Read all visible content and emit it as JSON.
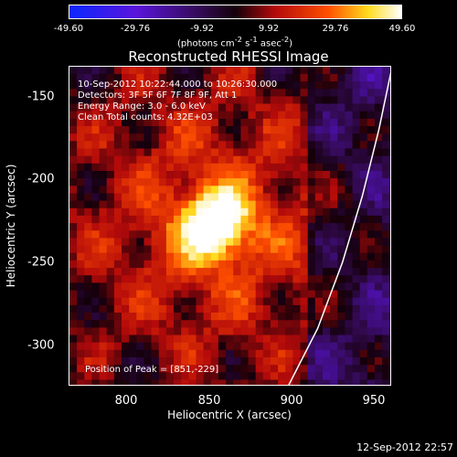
{
  "chart_data": {
    "type": "heatmap",
    "title": "Reconstructed RHESSI Image",
    "xlabel": "Heliocentric X (arcsec)",
    "ylabel": "Heliocentric Y (arcsec)",
    "xlim": [
      765,
      960
    ],
    "ylim": [
      -325,
      -132
    ],
    "xticks": [
      800,
      850,
      900,
      950
    ],
    "yticks": [
      -150,
      -200,
      -250,
      -300
    ],
    "colorbar": {
      "ticks": [
        "-49.60",
        "-29.76",
        "-9.92",
        "9.92",
        "29.76",
        "49.60"
      ],
      "min": -49.6,
      "max": 49.6,
      "units_main": "(photons cm",
      "units_exp1": "-2",
      "units_mid1": " s",
      "units_exp2": "-1",
      "units_mid2": " asec",
      "units_exp3": "-2",
      "units_end": ")"
    },
    "annotations": {
      "time_range": "10-Sep-2012 10:22:44.000 to 10:26:30.000",
      "detectors": "Detectors: 3F 5F 6F 7F 8F 9F, Att 1",
      "energy": "Energy Range: 3.0 - 6.0 keV",
      "clean": "Clean     Total counts: 4.32E+03",
      "peak": "Position of Peak = [851,-229]"
    },
    "peak": [
      851,
      -229
    ],
    "limb": [
      [
        897,
        -325
      ],
      [
        915,
        -290
      ],
      [
        930,
        -250
      ],
      [
        942,
        -210
      ],
      [
        952,
        -170
      ],
      [
        960,
        -132
      ]
    ]
  },
  "timestamp": "12-Sep-2012 22:57"
}
